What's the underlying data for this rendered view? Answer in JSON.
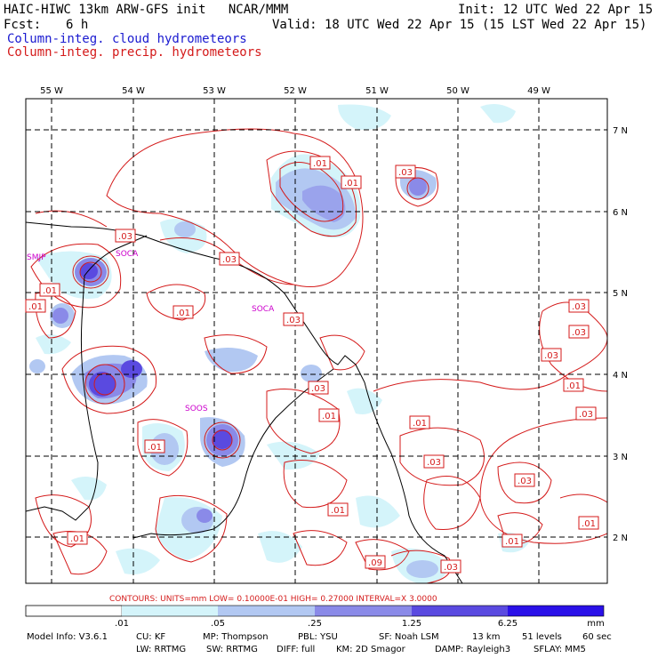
{
  "header": {
    "title_left": "HAIC-HIWC 13km ARW-GFS init   NCAR/MMM",
    "init": "Init: 12 UTC Wed 22 Apr 15",
    "fcst_label": "Fcst:",
    "fcst_value": "6 h",
    "valid": "Valid: 18 UTC Wed 22 Apr 15 (15 LST Wed 22 Apr 15)",
    "legend_cloud": "Column-integ. cloud hydrometeors",
    "legend_precip": "Column-integ. precip. hydrometeors"
  },
  "axes": {
    "lon_ticks": [
      "55 W",
      "54 W",
      "53 W",
      "52 W",
      "51 W",
      "50 W",
      "49 W"
    ],
    "lat_ticks": [
      "7 N",
      "6 N",
      "5 N",
      "4 N",
      "3 N",
      "2 N"
    ]
  },
  "stations": [
    "SMJP",
    "SOCA",
    "SOCA",
    "SOOS"
  ],
  "contour_labels": [
    ".01",
    ".03",
    ".03",
    ".01",
    ".01",
    ".03",
    ".01",
    ".03",
    ".01",
    ".01",
    ".03",
    ".03",
    ".01",
    ".01",
    ".03",
    ".03",
    ".03",
    ".01",
    ".01",
    ".09",
    ".01",
    ".03",
    ".01",
    ".01",
    ".03",
    ".03"
  ],
  "contour_info": "CONTOURS:  UNITS=mm  LOW= 0.10000E-01  HIGH= 0.27000     INTERVAL=X  3.0000",
  "colorbar": {
    "ticks": [
      ".01",
      ".05",
      ".25",
      "1.25",
      "6.25"
    ],
    "unit": "mm",
    "colors": [
      "#ffffff",
      "#d4f4fa",
      "#b2c8f2",
      "#8a8ae8",
      "#5a4ae0",
      "#2a10e8"
    ]
  },
  "footer": {
    "line1": [
      "Model Info: V3.6.1",
      "CU: KF",
      "MP: Thompson",
      "PBL: YSU",
      "SF: Noah LSM",
      "13 km",
      "51 levels",
      "60 sec"
    ],
    "line2": [
      "LW: RRTMG",
      "SW: RRTMG",
      "DIFF: full",
      "KM: 2D Smagor",
      "DAMP: Rayleigh3",
      "SFLAY: MM5"
    ]
  },
  "colors": {
    "cloud_legend": "#1a1ad0",
    "precip_contour": "#d41a1a",
    "station": "#cc00cc"
  }
}
